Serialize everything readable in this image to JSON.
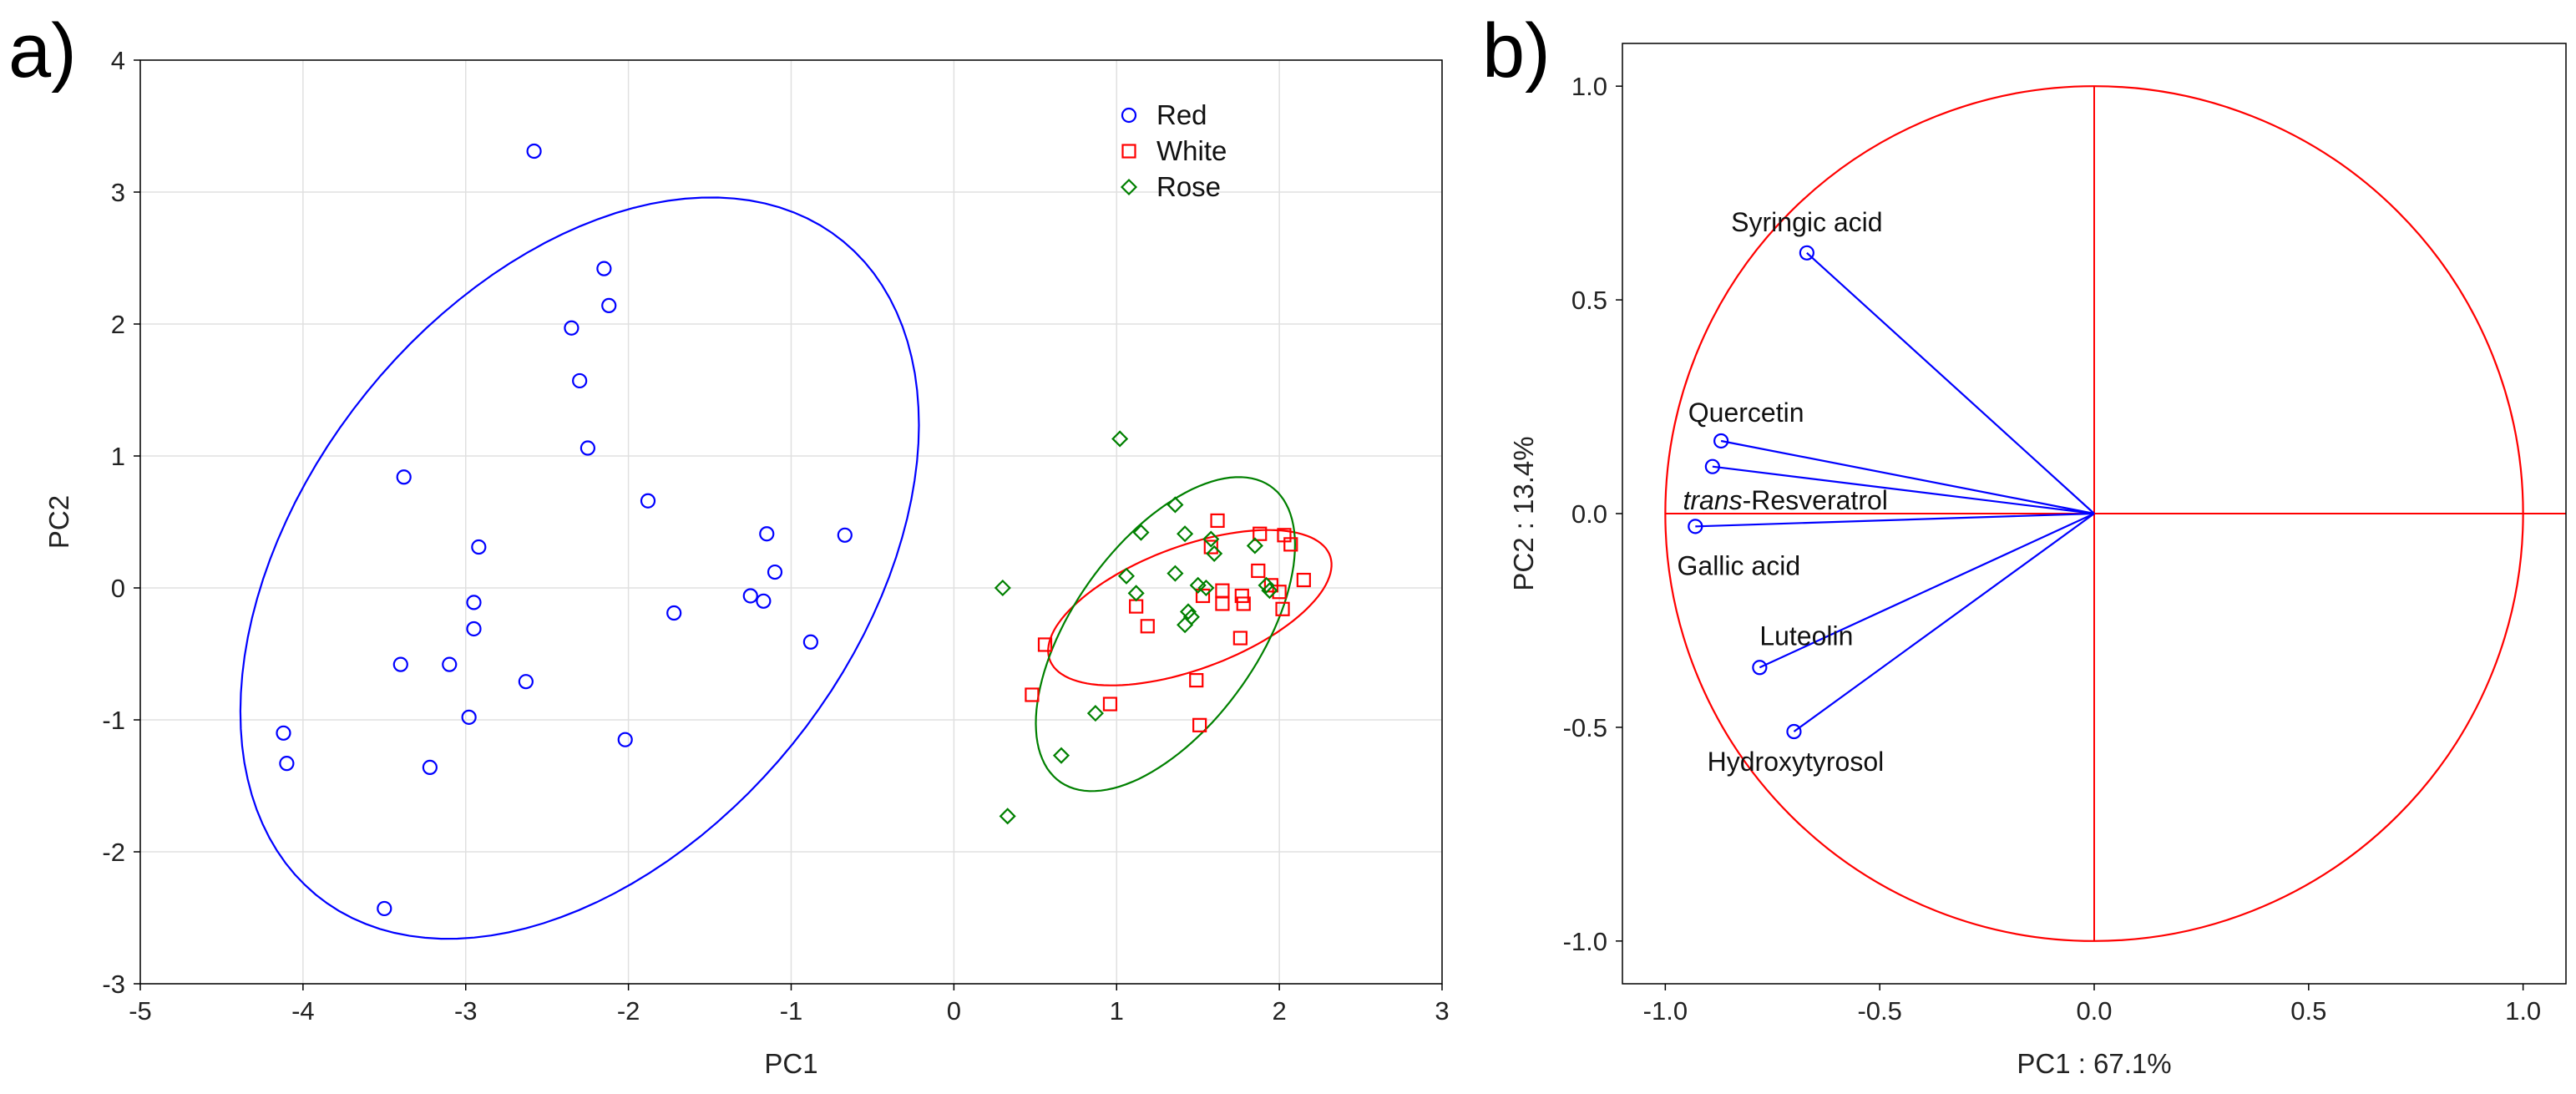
{
  "panel_labels": [
    "a)",
    "b)"
  ],
  "chart_data": [
    {
      "type": "scatter",
      "panel": "a)",
      "title": "",
      "xlabel": "PC1",
      "ylabel": "PC2",
      "xlim": [
        -5,
        3
      ],
      "ylim": [
        -3,
        4
      ],
      "xticks": [
        "-5",
        "-4",
        "-3",
        "-2",
        "-1",
        "0",
        "1",
        "2",
        "3"
      ],
      "yticks": [
        "-3",
        "-2",
        "-1",
        "0",
        "1",
        "2",
        "3",
        "4"
      ],
      "grid": true,
      "legend_position": "top-right",
      "series": [
        {
          "name": "Red",
          "color": "#0000ff",
          "marker": "circle",
          "points": [
            [
              -2.58,
              3.31
            ],
            [
              -2.15,
              2.42
            ],
            [
              -2.12,
              2.14
            ],
            [
              -2.35,
              1.97
            ],
            [
              -2.3,
              1.57
            ],
            [
              -2.25,
              1.06
            ],
            [
              -3.38,
              0.84
            ],
            [
              -1.88,
              0.66
            ],
            [
              -2.92,
              0.31
            ],
            [
              -2.95,
              -0.11
            ],
            [
              -2.95,
              -0.31
            ],
            [
              -3.1,
              -0.58
            ],
            [
              -3.4,
              -0.58
            ],
            [
              -2.63,
              -0.71
            ],
            [
              -2.98,
              -0.98
            ],
            [
              -3.22,
              -1.36
            ],
            [
              -4.12,
              -1.1
            ],
            [
              -4.1,
              -1.33
            ],
            [
              -3.5,
              -2.43
            ],
            [
              -2.02,
              -1.15
            ],
            [
              -1.72,
              -0.19
            ],
            [
              -1.15,
              0.41
            ],
            [
              -1.1,
              0.12
            ],
            [
              -1.25,
              -0.06
            ],
            [
              -1.17,
              -0.1
            ],
            [
              -0.88,
              -0.41
            ],
            [
              -0.67,
              0.4
            ]
          ],
          "ellipse": {
            "center": [
              -2.3,
              0.15
            ],
            "semi_axes": [
              3.0,
              1.8
            ],
            "angle_deg": 64
          }
        },
        {
          "name": "White",
          "color": "#ff0000",
          "marker": "square",
          "points": [
            [
              1.62,
              0.51
            ],
            [
              2.03,
              0.4
            ],
            [
              2.07,
              0.33
            ],
            [
              1.88,
              0.41
            ],
            [
              1.58,
              0.31
            ],
            [
              1.87,
              0.13
            ],
            [
              1.95,
              0.02
            ],
            [
              2.0,
              -0.03
            ],
            [
              2.15,
              0.06
            ],
            [
              1.65,
              -0.02
            ],
            [
              1.77,
              -0.06
            ],
            [
              1.53,
              -0.06
            ],
            [
              1.65,
              -0.12
            ],
            [
              1.78,
              -0.12
            ],
            [
              2.02,
              -0.16
            ],
            [
              1.12,
              -0.14
            ],
            [
              1.19,
              -0.29
            ],
            [
              1.76,
              -0.38
            ],
            [
              0.56,
              -0.43
            ],
            [
              1.49,
              -0.7
            ],
            [
              0.48,
              -0.81
            ],
            [
              0.96,
              -0.88
            ],
            [
              1.51,
              -1.04
            ]
          ],
          "ellipse": {
            "center": [
              1.45,
              -0.15
            ],
            "semi_axes": [
              0.95,
              0.45
            ],
            "angle_deg": 27
          }
        },
        {
          "name": "Rose",
          "color": "#008000",
          "marker": "diamond",
          "points": [
            [
              1.02,
              1.13
            ],
            [
              1.36,
              0.63
            ],
            [
              1.15,
              0.42
            ],
            [
              1.42,
              0.41
            ],
            [
              1.58,
              0.37
            ],
            [
              1.85,
              0.32
            ],
            [
              1.6,
              0.26
            ],
            [
              1.36,
              0.11
            ],
            [
              1.06,
              0.09
            ],
            [
              1.5,
              0.02
            ],
            [
              1.55,
              0.0
            ],
            [
              1.92,
              0.02
            ],
            [
              1.94,
              -0.02
            ],
            [
              0.3,
              0.0
            ],
            [
              1.12,
              -0.04
            ],
            [
              1.44,
              -0.18
            ],
            [
              1.46,
              -0.22
            ],
            [
              1.42,
              -0.28
            ],
            [
              0.87,
              -0.95
            ],
            [
              0.66,
              -1.27
            ],
            [
              0.33,
              -1.73
            ]
          ],
          "ellipse": {
            "center": [
              1.3,
              -0.35
            ],
            "semi_axes": [
              1.3,
              0.6
            ],
            "angle_deg": 63
          }
        }
      ]
    },
    {
      "type": "scatter",
      "panel": "b)",
      "title": "",
      "xlabel": "PC1 : 67.1%",
      "ylabel": "PC2 : 13.4%",
      "xlim": [
        -1.1,
        1.1
      ],
      "ylim": [
        -1.1,
        1.1
      ],
      "xticks": [
        "-1.0",
        "-0.5",
        "0.0",
        "0.5",
        "1.0"
      ],
      "yticks": [
        "-1.0",
        "-0.5",
        "0.0",
        "0.5",
        "1.0"
      ],
      "grid": false,
      "unit_circle_radius": 1.0,
      "circle_color": "#ff0000",
      "vector_color": "#0000ff",
      "variables": [
        {
          "name": "Syringic acid",
          "prefix": "",
          "x": -0.67,
          "y": 0.61
        },
        {
          "name": "Quercetin",
          "prefix": "",
          "x": -0.87,
          "y": 0.17
        },
        {
          "name": "-Resveratrol",
          "prefix": "trans",
          "x": -0.89,
          "y": 0.11
        },
        {
          "name": "Gallic acid",
          "prefix": "",
          "x": -0.93,
          "y": -0.03
        },
        {
          "name": "Luteolin",
          "prefix": "",
          "x": -0.78,
          "y": -0.36
        },
        {
          "name": "Hydroxytyrosol",
          "prefix": "",
          "x": -0.7,
          "y": -0.51
        }
      ]
    }
  ]
}
